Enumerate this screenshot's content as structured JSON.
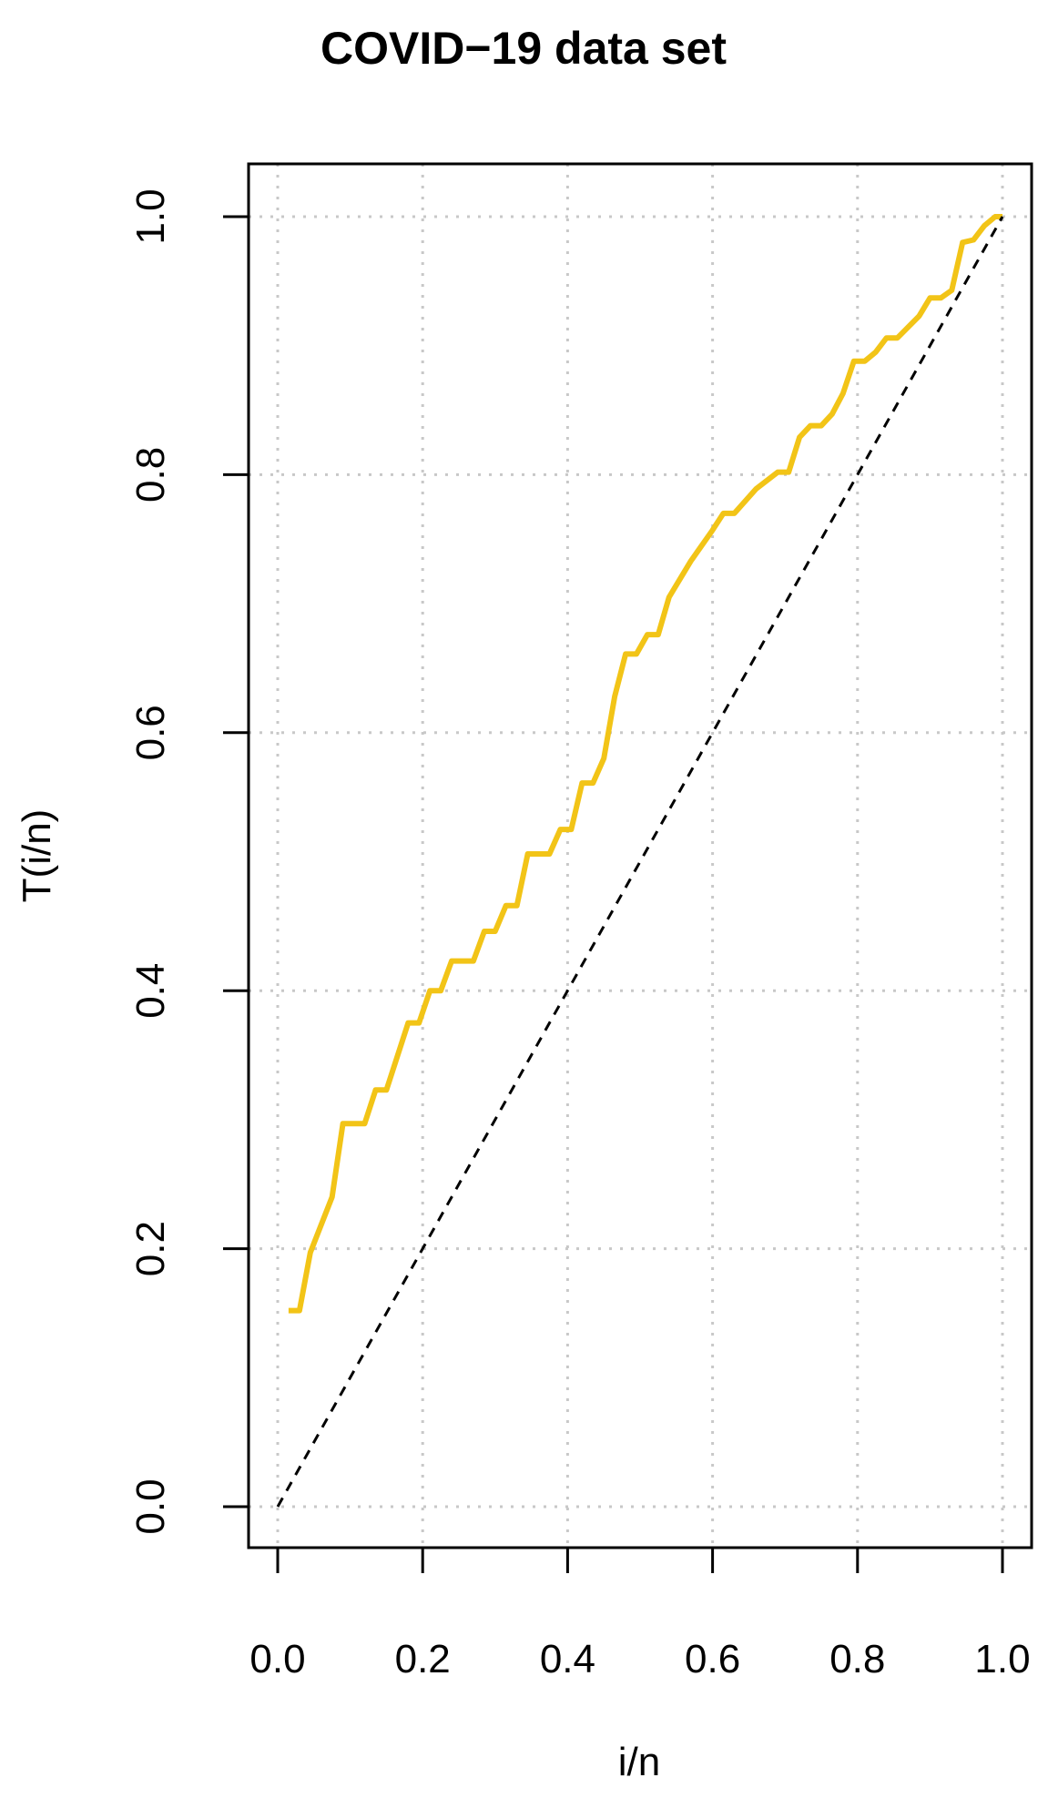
{
  "chart_data": {
    "type": "line",
    "title": "COVID−19 data set",
    "xlabel": "i/n",
    "ylabel": "T(i/n)",
    "xlim": [
      0,
      1
    ],
    "ylim": [
      0,
      1
    ],
    "grid": true,
    "x_ticks": [
      "0.0",
      "0.2",
      "0.4",
      "0.6",
      "0.8",
      "1.0"
    ],
    "y_ticks": [
      "0.0",
      "0.2",
      "0.4",
      "0.6",
      "0.8",
      "1.0"
    ],
    "series": [
      {
        "color": "#f2c417",
        "style": "solid",
        "points": [
          [
            0.015,
            0.152
          ],
          [
            0.03,
            0.152
          ],
          [
            0.045,
            0.197
          ],
          [
            0.075,
            0.24
          ],
          [
            0.09,
            0.297
          ],
          [
            0.12,
            0.297
          ],
          [
            0.135,
            0.323
          ],
          [
            0.15,
            0.323
          ],
          [
            0.18,
            0.375
          ],
          [
            0.195,
            0.375
          ],
          [
            0.21,
            0.4
          ],
          [
            0.225,
            0.4
          ],
          [
            0.24,
            0.423
          ],
          [
            0.27,
            0.423
          ],
          [
            0.285,
            0.446
          ],
          [
            0.3,
            0.446
          ],
          [
            0.315,
            0.466
          ],
          [
            0.33,
            0.466
          ],
          [
            0.345,
            0.506
          ],
          [
            0.375,
            0.506
          ],
          [
            0.39,
            0.525
          ],
          [
            0.405,
            0.525
          ],
          [
            0.42,
            0.561
          ],
          [
            0.435,
            0.561
          ],
          [
            0.45,
            0.58
          ],
          [
            0.465,
            0.628
          ],
          [
            0.48,
            0.661
          ],
          [
            0.495,
            0.661
          ],
          [
            0.51,
            0.676
          ],
          [
            0.525,
            0.676
          ],
          [
            0.54,
            0.705
          ],
          [
            0.57,
            0.733
          ],
          [
            0.6,
            0.757
          ],
          [
            0.615,
            0.77
          ],
          [
            0.63,
            0.77
          ],
          [
            0.66,
            0.789
          ],
          [
            0.69,
            0.802
          ],
          [
            0.705,
            0.802
          ],
          [
            0.72,
            0.829
          ],
          [
            0.735,
            0.838
          ],
          [
            0.75,
            0.838
          ],
          [
            0.765,
            0.847
          ],
          [
            0.78,
            0.863
          ],
          [
            0.795,
            0.888
          ],
          [
            0.81,
            0.888
          ],
          [
            0.825,
            0.895
          ],
          [
            0.84,
            0.906
          ],
          [
            0.855,
            0.906
          ],
          [
            0.885,
            0.923
          ],
          [
            0.9,
            0.937
          ],
          [
            0.915,
            0.937
          ],
          [
            0.93,
            0.943
          ],
          [
            0.945,
            0.98
          ],
          [
            0.96,
            0.982
          ],
          [
            0.975,
            0.993
          ],
          [
            0.99,
            1.0
          ],
          [
            1.0,
            1.0
          ]
        ]
      },
      {
        "color": "#000000",
        "style": "dashed",
        "points": [
          [
            0,
            0
          ],
          [
            1,
            1
          ]
        ]
      }
    ]
  }
}
